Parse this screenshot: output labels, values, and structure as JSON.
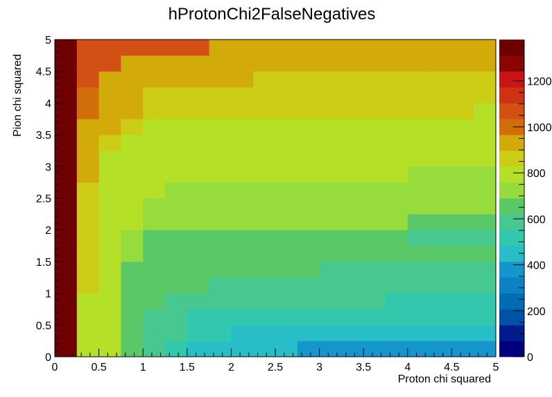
{
  "chart_data": {
    "type": "heatmap",
    "title": "hProtonChi2FalseNegatives",
    "xlabel": "Proton chi squared",
    "ylabel": "Pion chi squared",
    "xlim": [
      0,
      5
    ],
    "ylim": [
      0,
      5
    ],
    "zlim": [
      0,
      1380
    ],
    "x_bin_width": 0.25,
    "y_bin_width": 0.25,
    "x_ticks": [
      "0",
      "0.5",
      "1",
      "1.5",
      "2",
      "2.5",
      "3",
      "3.5",
      "4",
      "4.5",
      "5"
    ],
    "y_ticks": [
      "0",
      "0.5",
      "1",
      "1.5",
      "2",
      "2.5",
      "3",
      "3.5",
      "4",
      "4.5",
      "5"
    ],
    "z_ticks": [
      "0",
      "200",
      "400",
      "600",
      "800",
      "1000",
      "1200"
    ],
    "colorbar": true,
    "colorbar_levels": 20,
    "palette": [
      "#00007f",
      "#001c8c",
      "#003799",
      "#0052a6",
      "#006db3",
      "#0a82c4",
      "#1496cc",
      "#1eaad4",
      "#28bec8",
      "#32c8ae",
      "#46c890",
      "#5ac866",
      "#78d24e",
      "#96dc3c",
      "#b4e128",
      "#cccd14",
      "#d2aa0a",
      "#d28c0a",
      "#d26e0a",
      "#d25014",
      "#cd3214",
      "#c81414",
      "#aa0a0a",
      "#8c0505",
      "#6e0000"
    ],
    "z": [
      [
        1380,
        820,
        780,
        650,
        560,
        500,
        450,
        450,
        420,
        420,
        420,
        400,
        400,
        400,
        400,
        400,
        400,
        400,
        400,
        400
      ],
      [
        1380,
        820,
        780,
        650,
        600,
        560,
        540,
        520,
        480,
        480,
        480,
        480,
        450,
        450,
        450,
        450,
        450,
        450,
        450,
        420
      ],
      [
        1380,
        820,
        780,
        650,
        600,
        560,
        540,
        540,
        520,
        520,
        520,
        520,
        520,
        520,
        520,
        520,
        520,
        520,
        520,
        520
      ],
      [
        1380,
        820,
        780,
        680,
        650,
        600,
        600,
        560,
        560,
        560,
        560,
        560,
        560,
        560,
        560,
        520,
        520,
        520,
        520,
        520
      ],
      [
        1380,
        860,
        780,
        680,
        650,
        650,
        650,
        620,
        600,
        600,
        600,
        600,
        600,
        600,
        600,
        600,
        600,
        600,
        600,
        560
      ],
      [
        1380,
        860,
        780,
        680,
        680,
        650,
        650,
        650,
        650,
        650,
        650,
        650,
        560,
        560,
        560,
        560,
        560,
        560,
        560,
        560
      ],
      [
        1380,
        860,
        780,
        720,
        680,
        680,
        650,
        650,
        650,
        650,
        650,
        650,
        650,
        650,
        650,
        650,
        650,
        650,
        650,
        650
      ],
      [
        1380,
        860,
        800,
        720,
        680,
        680,
        680,
        680,
        680,
        680,
        680,
        680,
        650,
        650,
        650,
        650,
        600,
        600,
        600,
        600
      ],
      [
        1380,
        860,
        800,
        760,
        720,
        720,
        700,
        700,
        700,
        700,
        700,
        700,
        700,
        700,
        700,
        700,
        650,
        650,
        650,
        650
      ],
      [
        1380,
        860,
        800,
        760,
        720,
        720,
        700,
        700,
        700,
        700,
        700,
        700,
        700,
        700,
        700,
        700,
        700,
        700,
        700,
        700
      ],
      [
        1380,
        860,
        800,
        800,
        760,
        720,
        720,
        720,
        720,
        720,
        720,
        720,
        720,
        720,
        720,
        720,
        720,
        720,
        720,
        720
      ],
      [
        1380,
        900,
        800,
        800,
        760,
        760,
        760,
        760,
        760,
        760,
        760,
        760,
        760,
        760,
        760,
        760,
        720,
        720,
        720,
        720
      ],
      [
        1380,
        900,
        800,
        800,
        800,
        760,
        760,
        760,
        760,
        760,
        760,
        760,
        760,
        760,
        760,
        760,
        760,
        760,
        760,
        760
      ],
      [
        1380,
        950,
        860,
        800,
        800,
        800,
        760,
        760,
        760,
        760,
        760,
        760,
        760,
        760,
        760,
        760,
        760,
        760,
        760,
        760
      ],
      [
        1380,
        950,
        900,
        860,
        800,
        800,
        800,
        800,
        800,
        800,
        760,
        760,
        760,
        760,
        760,
        760,
        760,
        760,
        760,
        760
      ],
      [
        1380,
        1000,
        950,
        900,
        860,
        860,
        860,
        860,
        860,
        860,
        860,
        860,
        860,
        860,
        860,
        860,
        860,
        860,
        860,
        800
      ],
      [
        1380,
        1000,
        950,
        900,
        860,
        860,
        860,
        860,
        860,
        860,
        860,
        860,
        860,
        860,
        860,
        860,
        860,
        860,
        860,
        860
      ],
      [
        1380,
        1050,
        950,
        950,
        950,
        900,
        900,
        900,
        900,
        860,
        860,
        860,
        860,
        860,
        860,
        860,
        860,
        860,
        860,
        860
      ],
      [
        1380,
        1100,
        1050,
        950,
        950,
        950,
        950,
        950,
        950,
        950,
        950,
        950,
        950,
        950,
        950,
        950,
        950,
        950,
        950,
        950
      ],
      [
        1380,
        1100,
        1050,
        1050,
        1050,
        1050,
        1050,
        950,
        950,
        950,
        950,
        950,
        950,
        950,
        950,
        950,
        950,
        950,
        950,
        950
      ]
    ]
  }
}
